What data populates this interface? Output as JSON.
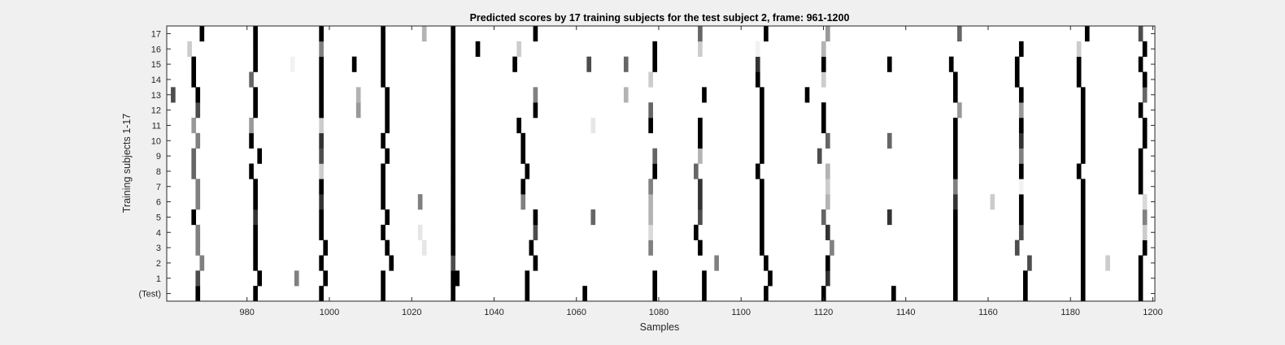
{
  "chart_data": {
    "type": "heatmap",
    "title": "Predicted scores by 17 training subjects for the test subject 2, frame: 961-1200",
    "xlabel": "Samples",
    "ylabel": "Training subjects 1-17",
    "xlim": [
      961,
      1200
    ],
    "x_ticks": [
      980,
      1000,
      1020,
      1040,
      1060,
      1080,
      1100,
      1120,
      1140,
      1160,
      1180,
      1200
    ],
    "x_tick_labels": [
      "980",
      "1000",
      "1020",
      "1040",
      "1060",
      "1080",
      "1100",
      "1120",
      "1140",
      "1160",
      "1180",
      "1200"
    ],
    "row_labels": [
      "(Test)",
      "1",
      "2",
      "3",
      "4",
      "5",
      "6",
      "7",
      "8",
      "9",
      "10",
      "11",
      "12",
      "13",
      "14",
      "15",
      "16",
      "17"
    ],
    "colormap": "gray (0 = black, 1 = white)",
    "background_value": 1,
    "rows": [
      {
        "label": "(Test)",
        "marks": [
          [
            968,
            0
          ],
          [
            982,
            0
          ],
          [
            998,
            0
          ],
          [
            1013,
            0
          ],
          [
            1030,
            0
          ],
          [
            1048,
            0
          ],
          [
            1062,
            0
          ],
          [
            1079,
            0
          ],
          [
            1091,
            0
          ],
          [
            1106,
            0
          ],
          [
            1120,
            0
          ],
          [
            1137,
            0
          ],
          [
            1152,
            0
          ],
          [
            1169,
            0
          ],
          [
            1183,
            0
          ],
          [
            1197,
            0
          ]
        ]
      },
      {
        "label": "1",
        "marks": [
          [
            968,
            0.3
          ],
          [
            983,
            0
          ],
          [
            992,
            0.5
          ],
          [
            999,
            0
          ],
          [
            1013,
            0
          ],
          [
            1030,
            0
          ],
          [
            1031,
            0
          ],
          [
            1048,
            0
          ],
          [
            1079,
            0
          ],
          [
            1091,
            0
          ],
          [
            1107,
            0
          ],
          [
            1121,
            0.2
          ],
          [
            1152,
            0
          ],
          [
            1169,
            0
          ],
          [
            1183,
            0
          ],
          [
            1197,
            0
          ]
        ]
      },
      {
        "label": "2",
        "marks": [
          [
            969,
            0.5
          ],
          [
            982,
            0
          ],
          [
            998,
            0
          ],
          [
            1015,
            0
          ],
          [
            1030,
            0.3
          ],
          [
            1050,
            0
          ],
          [
            1094,
            0.5
          ],
          [
            1106,
            0
          ],
          [
            1121,
            0
          ],
          [
            1152,
            0
          ],
          [
            1170,
            0.3
          ],
          [
            1183,
            0
          ],
          [
            1189,
            0.8
          ],
          [
            1197,
            0
          ]
        ]
      },
      {
        "label": "3",
        "marks": [
          [
            968,
            0.5
          ],
          [
            982,
            0
          ],
          [
            999,
            0
          ],
          [
            1014,
            0
          ],
          [
            1023,
            0.9
          ],
          [
            1030,
            0
          ],
          [
            1049,
            0
          ],
          [
            1078,
            0.5
          ],
          [
            1090,
            0
          ],
          [
            1105,
            0
          ],
          [
            1122,
            0.5
          ],
          [
            1152,
            0
          ],
          [
            1167,
            0.3
          ],
          [
            1183,
            0
          ],
          [
            1198,
            0
          ]
        ]
      },
      {
        "label": "4",
        "marks": [
          [
            968,
            0.5
          ],
          [
            982,
            0
          ],
          [
            998,
            0
          ],
          [
            1013,
            0
          ],
          [
            1022,
            0.9
          ],
          [
            1030,
            0
          ],
          [
            1050,
            0.3
          ],
          [
            1078,
            0.85
          ],
          [
            1089,
            0
          ],
          [
            1105,
            0
          ],
          [
            1121,
            0.2
          ],
          [
            1152,
            0
          ],
          [
            1168,
            0.3
          ],
          [
            1183,
            0
          ],
          [
            1198,
            0.8
          ]
        ]
      },
      {
        "label": "5",
        "marks": [
          [
            967,
            0
          ],
          [
            982,
            0.2
          ],
          [
            998,
            0
          ],
          [
            1014,
            0
          ],
          [
            1030,
            0
          ],
          [
            1050,
            0
          ],
          [
            1064,
            0.4
          ],
          [
            1078,
            0.7
          ],
          [
            1090,
            0.3
          ],
          [
            1105,
            0
          ],
          [
            1120,
            0.4
          ],
          [
            1136,
            0.2
          ],
          [
            1152,
            0
          ],
          [
            1168,
            0
          ],
          [
            1183,
            0
          ],
          [
            1198,
            0.5
          ]
        ]
      },
      {
        "label": "6",
        "marks": [
          [
            968,
            0.5
          ],
          [
            982,
            0
          ],
          [
            998,
            0.2
          ],
          [
            1013,
            0
          ],
          [
            1022,
            0.5
          ],
          [
            1030,
            0
          ],
          [
            1047,
            0.5
          ],
          [
            1078,
            0.7
          ],
          [
            1090,
            0.2
          ],
          [
            1105,
            0
          ],
          [
            1121,
            0.7
          ],
          [
            1152,
            0.2
          ],
          [
            1161,
            0.8
          ],
          [
            1168,
            0
          ],
          [
            1183,
            0
          ],
          [
            1198,
            0.85
          ]
        ]
      },
      {
        "label": "7",
        "marks": [
          [
            968,
            0.5
          ],
          [
            982,
            0
          ],
          [
            998,
            0
          ],
          [
            1013,
            0
          ],
          [
            1030,
            0
          ],
          [
            1047,
            0
          ],
          [
            1078,
            0.5
          ],
          [
            1090,
            0.2
          ],
          [
            1105,
            0
          ],
          [
            1121,
            0.8
          ],
          [
            1152,
            0.5
          ],
          [
            1168,
            0.95
          ],
          [
            1183,
            0
          ],
          [
            1197,
            0
          ]
        ]
      },
      {
        "label": "8",
        "marks": [
          [
            967,
            0.4
          ],
          [
            981,
            0
          ],
          [
            998,
            0.8
          ],
          [
            1013,
            0
          ],
          [
            1030,
            0
          ],
          [
            1048,
            0
          ],
          [
            1079,
            0
          ],
          [
            1089,
            0.4
          ],
          [
            1104,
            0
          ],
          [
            1121,
            0.7
          ],
          [
            1152,
            0
          ],
          [
            1168,
            0
          ],
          [
            1182,
            0
          ],
          [
            1197,
            0
          ]
        ]
      },
      {
        "label": "9",
        "marks": [
          [
            967,
            0.4
          ],
          [
            983,
            0
          ],
          [
            998,
            0.3
          ],
          [
            1014,
            0
          ],
          [
            1030,
            0
          ],
          [
            1047,
            0
          ],
          [
            1079,
            0.4
          ],
          [
            1090,
            0.7
          ],
          [
            1105,
            0
          ],
          [
            1119,
            0.3
          ],
          [
            1152,
            0
          ],
          [
            1168,
            0.5
          ],
          [
            1183,
            0
          ],
          [
            1197,
            0
          ]
        ]
      },
      {
        "label": "10",
        "marks": [
          [
            968,
            0.5
          ],
          [
            981,
            0
          ],
          [
            998,
            0.2
          ],
          [
            1013,
            0
          ],
          [
            1030,
            0
          ],
          [
            1047,
            0
          ],
          [
            1090,
            0
          ],
          [
            1105,
            0
          ],
          [
            1121,
            0.4
          ],
          [
            1136,
            0.4
          ],
          [
            1152,
            0
          ],
          [
            1168,
            0.2
          ],
          [
            1183,
            0
          ],
          [
            1198,
            0
          ]
        ]
      },
      {
        "label": "11",
        "marks": [
          [
            967,
            0.6
          ],
          [
            981,
            0.6
          ],
          [
            998,
            0.8
          ],
          [
            1014,
            0
          ],
          [
            1030,
            0
          ],
          [
            1046,
            0
          ],
          [
            1064,
            0.9
          ],
          [
            1078,
            0
          ],
          [
            1090,
            0
          ],
          [
            1105,
            0
          ],
          [
            1120,
            0
          ],
          [
            1152,
            0
          ],
          [
            1168,
            0
          ],
          [
            1183,
            0
          ],
          [
            1198,
            0
          ]
        ]
      },
      {
        "label": "12",
        "marks": [
          [
            968,
            0.3
          ],
          [
            982,
            0
          ],
          [
            998,
            0
          ],
          [
            1007,
            0.6
          ],
          [
            1014,
            0
          ],
          [
            1030,
            0
          ],
          [
            1050,
            0
          ],
          [
            1078,
            0.4
          ],
          [
            1105,
            0
          ],
          [
            1120,
            0
          ],
          [
            1153,
            0.6
          ],
          [
            1168,
            0.6
          ],
          [
            1183,
            0
          ],
          [
            1197,
            0
          ]
        ]
      },
      {
        "label": "13",
        "marks": [
          [
            962,
            0.3
          ],
          [
            968,
            0
          ],
          [
            982,
            0
          ],
          [
            998,
            0
          ],
          [
            1007,
            0.7
          ],
          [
            1014,
            0
          ],
          [
            1030,
            0
          ],
          [
            1050,
            0.5
          ],
          [
            1072,
            0.7
          ],
          [
            1091,
            0
          ],
          [
            1105,
            0
          ],
          [
            1116,
            0
          ],
          [
            1152,
            0
          ],
          [
            1168,
            0
          ],
          [
            1183,
            0
          ],
          [
            1198,
            0.4
          ]
        ]
      },
      {
        "label": "14",
        "marks": [
          [
            967,
            0
          ],
          [
            981,
            0.4
          ],
          [
            998,
            0
          ],
          [
            1013,
            0
          ],
          [
            1030,
            0
          ],
          [
            1078,
            0.8
          ],
          [
            1104,
            0
          ],
          [
            1120,
            0.8
          ],
          [
            1152,
            0
          ],
          [
            1167,
            0
          ],
          [
            1182,
            0
          ],
          [
            1198,
            0
          ]
        ]
      },
      {
        "label": "15",
        "marks": [
          [
            967,
            0
          ],
          [
            982,
            0
          ],
          [
            991,
            0.95
          ],
          [
            998,
            0
          ],
          [
            1006,
            0
          ],
          [
            1013,
            0
          ],
          [
            1030,
            0
          ],
          [
            1045,
            0
          ],
          [
            1063,
            0.3
          ],
          [
            1072,
            0.4
          ],
          [
            1079,
            0
          ],
          [
            1104,
            0.2
          ],
          [
            1120,
            0
          ],
          [
            1136,
            0
          ],
          [
            1151,
            0
          ],
          [
            1167,
            0
          ],
          [
            1182,
            0
          ],
          [
            1197,
            0
          ]
        ]
      },
      {
        "label": "16",
        "marks": [
          [
            966,
            0.8
          ],
          [
            982,
            0
          ],
          [
            998,
            0.5
          ],
          [
            1013,
            0
          ],
          [
            1030,
            0
          ],
          [
            1036,
            0
          ],
          [
            1046,
            0.8
          ],
          [
            1079,
            0
          ],
          [
            1090,
            0.8
          ],
          [
            1104,
            0.95
          ],
          [
            1120,
            0.7
          ],
          [
            1168,
            0
          ],
          [
            1182,
            0.8
          ],
          [
            1198,
            0
          ]
        ]
      },
      {
        "label": "17",
        "marks": [
          [
            969,
            0
          ],
          [
            982,
            0
          ],
          [
            998,
            0
          ],
          [
            1013,
            0
          ],
          [
            1023,
            0.7
          ],
          [
            1030,
            0
          ],
          [
            1050,
            0
          ],
          [
            1090,
            0.4
          ],
          [
            1106,
            0
          ],
          [
            1121,
            0.6
          ],
          [
            1153,
            0.4
          ],
          [
            1184,
            0
          ],
          [
            1197,
            0.3
          ]
        ]
      }
    ]
  }
}
